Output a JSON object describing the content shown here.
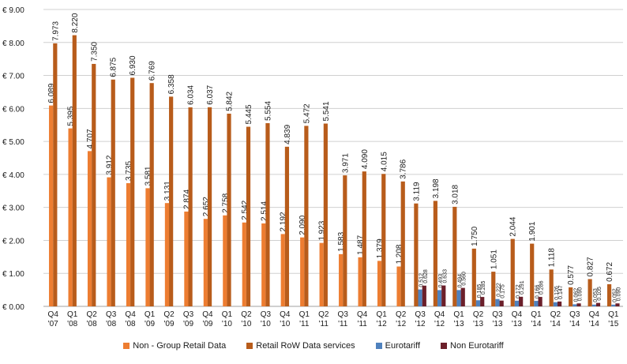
{
  "chart_data": {
    "type": "bar",
    "categories": [
      [
        "Q4",
        "'07"
      ],
      [
        "Q1",
        "'08"
      ],
      [
        "Q2",
        "'08"
      ],
      [
        "Q3",
        "'08"
      ],
      [
        "Q4",
        "'08"
      ],
      [
        "Q1",
        "'09"
      ],
      [
        "Q2",
        "'09"
      ],
      [
        "Q3",
        "'09"
      ],
      [
        "Q4",
        "'09"
      ],
      [
        "Q1",
        "'10"
      ],
      [
        "Q2",
        "'10"
      ],
      [
        "Q3",
        "'10"
      ],
      [
        "Q4",
        "'10"
      ],
      [
        "Q1",
        "'11"
      ],
      [
        "Q2",
        "'11"
      ],
      [
        "Q3",
        "'11"
      ],
      [
        "Q4",
        "'11"
      ],
      [
        "Q1",
        "'12"
      ],
      [
        "Q2",
        "'12"
      ],
      [
        "Q3",
        "'12"
      ],
      [
        "Q4",
        "'12"
      ],
      [
        "Q1",
        "'13"
      ],
      [
        "Q2",
        "'13"
      ],
      [
        "Q3",
        "'13"
      ],
      [
        "Q4",
        "'13"
      ],
      [
        "Q1",
        "'14"
      ],
      [
        "Q2",
        "'14"
      ],
      [
        "Q3",
        "'14"
      ],
      [
        "Q4",
        "'14"
      ],
      [
        "Q1",
        "'15"
      ]
    ],
    "ylim": [
      0,
      9
    ],
    "yticks": [
      0,
      1,
      2,
      3,
      4,
      5,
      6,
      7,
      8,
      9
    ],
    "ytick_labels": [
      "€ 0.00",
      "€ 1.00",
      "€ 2.00",
      "€ 3.00",
      "€ 4.00",
      "€ 5.00",
      "€ 6.00",
      "€ 7.00",
      "€ 8.00",
      "€ 9.00"
    ],
    "grid": true,
    "legend_position": "bottom",
    "series": [
      {
        "name": "Non - Group Retail Data",
        "color": "#ED7D31",
        "values": [
          6.089,
          5.395,
          4.707,
          3.912,
          3.735,
          3.581,
          3.131,
          2.874,
          2.652,
          2.758,
          2.542,
          2.514,
          2.192,
          2.09,
          1.923,
          1.583,
          1.487,
          1.379,
          1.208,
          null,
          null,
          null,
          null,
          null,
          null,
          null,
          null,
          null,
          null,
          null
        ],
        "labels": [
          "6.089",
          "5.395",
          "4.707",
          "3.912",
          "3.735",
          "3.581",
          "3.131",
          "2.874",
          "2.652",
          "2.758",
          "2.542",
          "2.514",
          "2.192",
          "2.090",
          "1.923",
          "1.583",
          "1.487",
          "1.379",
          "1.208",
          "",
          "",
          "",
          "",
          "",
          "",
          "",
          "",
          "",
          "",
          ""
        ]
      },
      {
        "name": "Retail RoW Data services",
        "color": "#B85C1B",
        "values": [
          7.973,
          8.22,
          7.35,
          6.875,
          6.93,
          6.769,
          6.358,
          6.034,
          6.037,
          5.842,
          5.445,
          5.554,
          4.839,
          5.472,
          5.541,
          3.971,
          4.09,
          4.015,
          3.786,
          3.119,
          3.198,
          3.018,
          1.75,
          1.051,
          2.044,
          1.901,
          1.118,
          0.577,
          0.827,
          0.672
        ],
        "labels": [
          "7.973",
          "8.220",
          "7.350",
          "6.875",
          "6.930",
          "6.769",
          "6.358",
          "6.034",
          "6.037",
          "5.842",
          "5.445",
          "5.554",
          "4.839",
          "5.472",
          "5.541",
          "3.971",
          "4.090",
          "4.015",
          "3.786",
          "3.119",
          "3.198",
          "3.018",
          "1.750",
          "1.051",
          "2.044",
          "1.901",
          "1.118",
          "0.577",
          "0.827",
          "0.672"
        ]
      },
      {
        "name": "Eurotariff",
        "color": "#4F81BD",
        "values": [
          null,
          null,
          null,
          null,
          null,
          null,
          null,
          null,
          null,
          null,
          null,
          null,
          null,
          null,
          null,
          null,
          null,
          null,
          null,
          0.512,
          0.493,
          0.494,
          0.185,
          0.222,
          0.172,
          0.166,
          0.126,
          0.062,
          0.053,
          0.052
        ],
        "labels": [
          "",
          "",
          "",
          "",
          "",
          "",
          "",
          "",
          "",
          "",
          "",
          "",
          "",
          "",
          "",
          "",
          "",
          "",
          "",
          "0.512",
          "0.493",
          "0.494",
          "0.185",
          "0.222",
          "0.172",
          "0.166",
          "0.126",
          "0.062",
          "0.053",
          "0.052"
        ]
      },
      {
        "name": "Non Eurotariff",
        "color": "#6B1F2A",
        "values": [
          null,
          null,
          null,
          null,
          null,
          null,
          null,
          null,
          null,
          null,
          null,
          null,
          null,
          null,
          null,
          null,
          null,
          null,
          null,
          0.628,
          0.633,
          0.56,
          0.285,
          0.175,
          0.291,
          0.286,
          0.147,
          0.09,
          0.105,
          0.09
        ],
        "labels": [
          "",
          "",
          "",
          "",
          "",
          "",
          "",
          "",
          "",
          "",
          "",
          "",
          "",
          "",
          "",
          "",
          "",
          "",
          "",
          "0.628",
          "0.633",
          "0.560",
          "0.285",
          "0.175",
          "0.291",
          "0.286",
          "0.147",
          "0.090",
          "0.105",
          "0.090"
        ]
      }
    ]
  }
}
